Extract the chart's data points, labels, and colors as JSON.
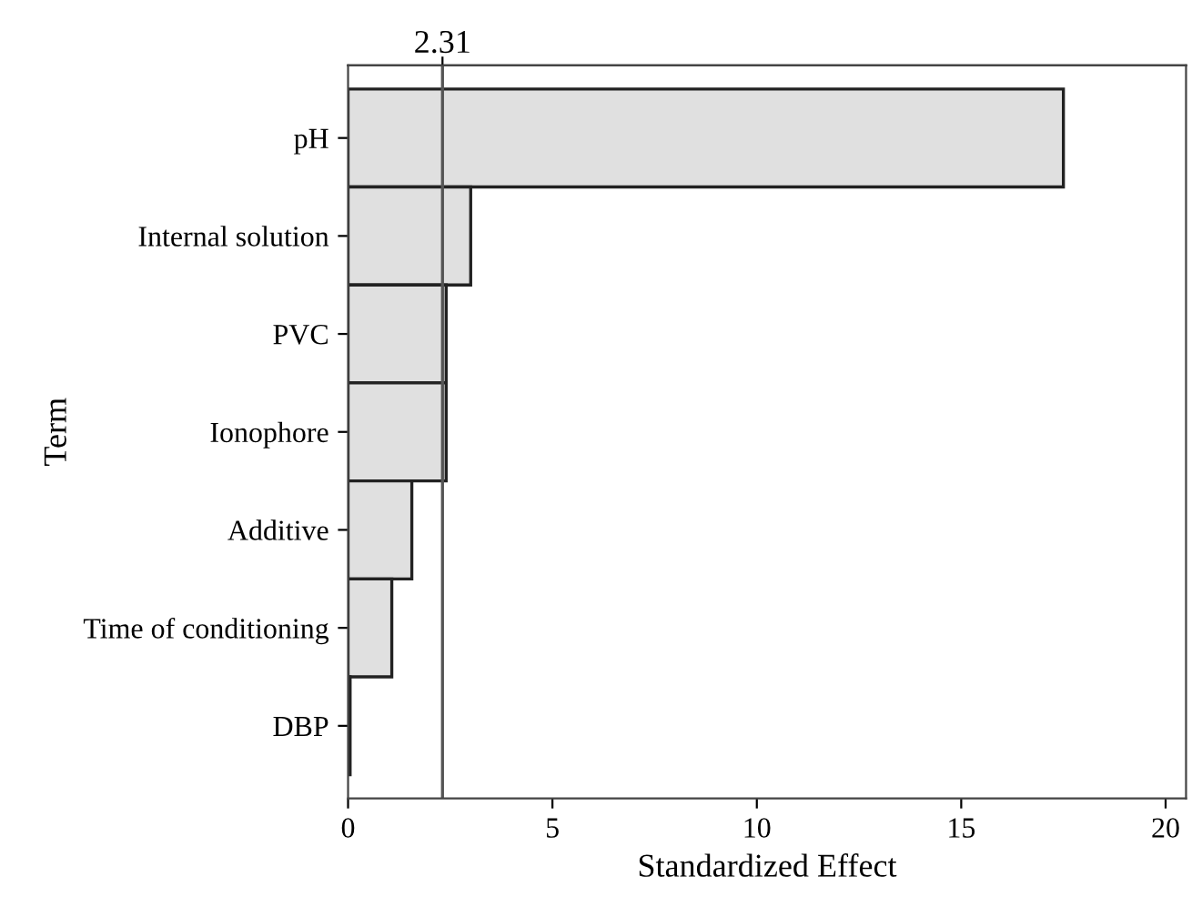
{
  "chart_data": {
    "type": "bar",
    "orientation": "horizontal",
    "xlabel": "Standardized Effect",
    "ylabel": "Term",
    "categories": [
      "pH",
      "Internal solution",
      "PVC",
      "Ionophore",
      "Additive",
      "Time of conditioning",
      "DBP"
    ],
    "values": [
      17.5,
      3.0,
      2.4,
      2.4,
      1.56,
      1.07,
      0.05
    ],
    "color": "#e0e0e0",
    "xlim": [
      0,
      20.5
    ],
    "xticks": [
      0,
      5,
      10,
      15,
      20
    ],
    "ref_lines": [
      {
        "axis": "x",
        "value": 2.31,
        "label": "2.31",
        "color": "#555555"
      }
    ],
    "grid": false,
    "legend": false
  }
}
